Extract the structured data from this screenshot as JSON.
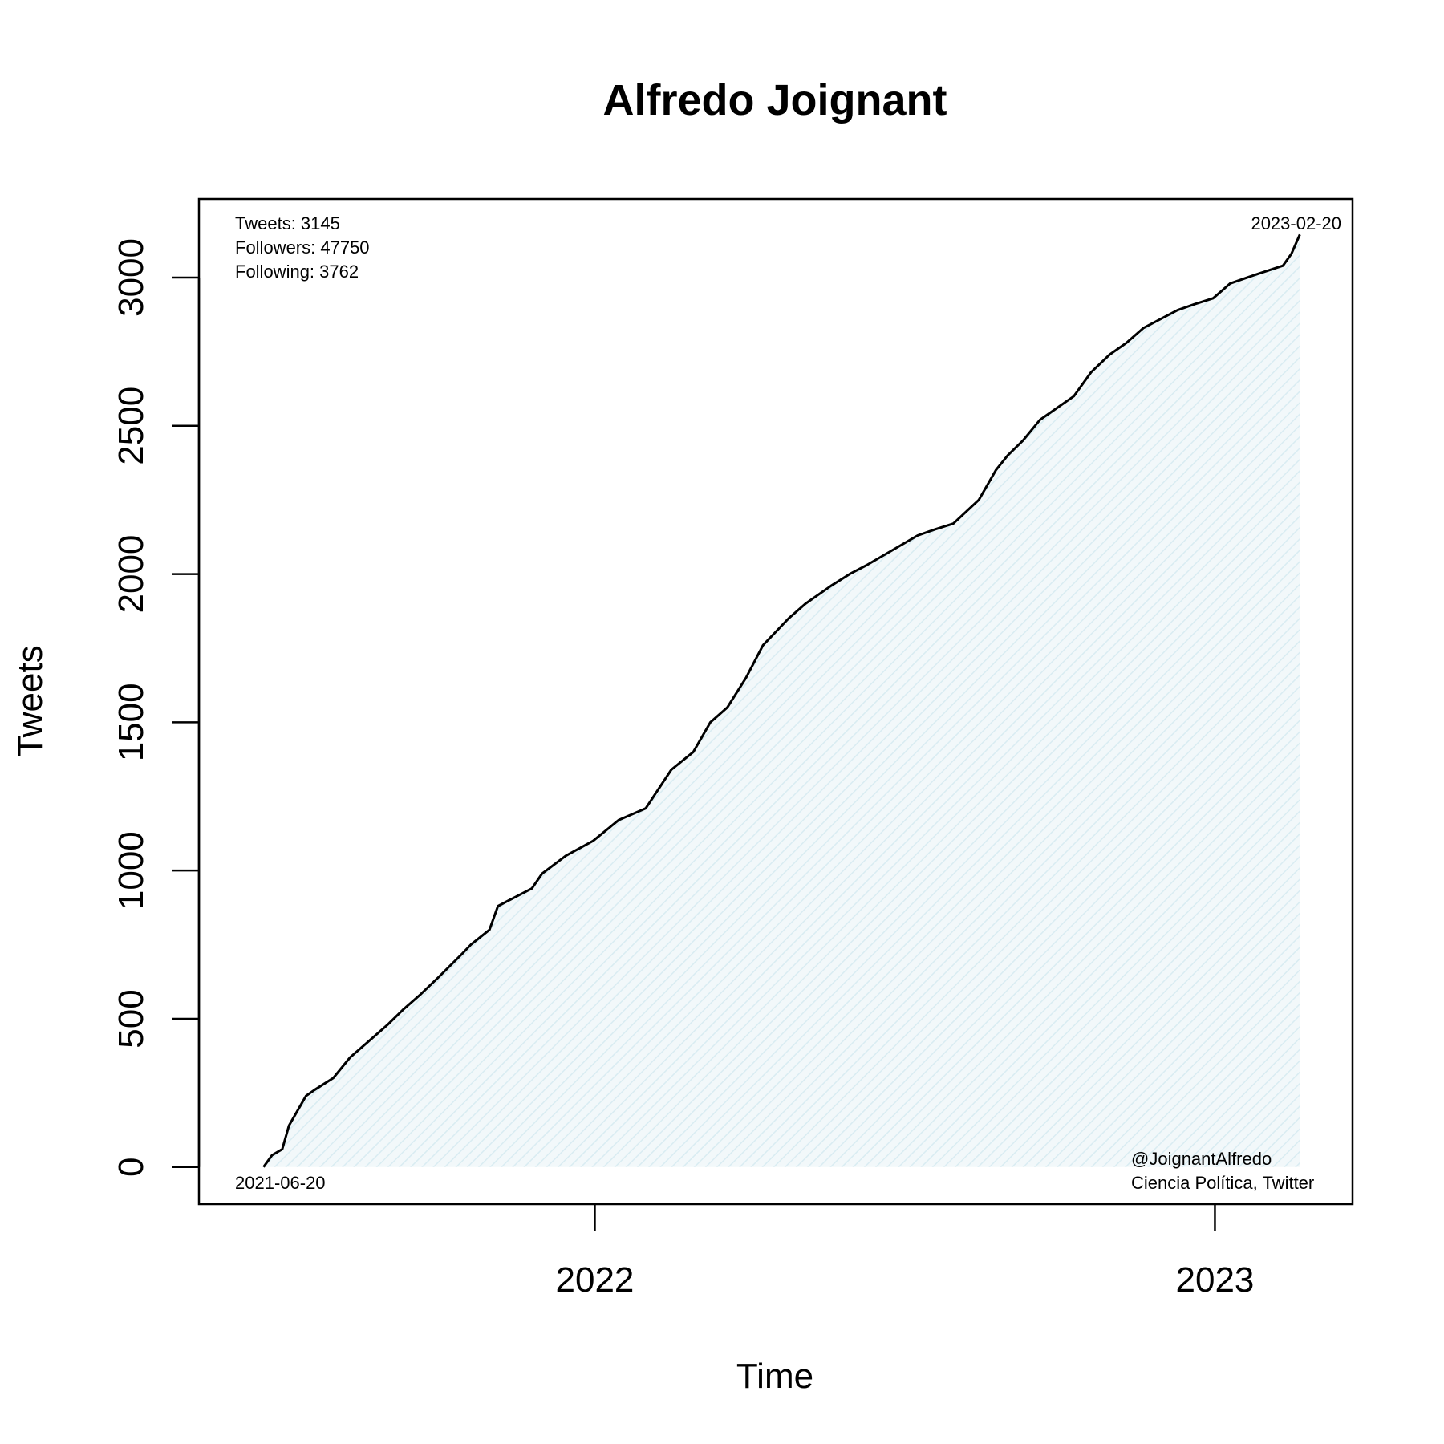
{
  "chart_data": {
    "type": "area",
    "title": "Alfredo Joignant",
    "xlabel": "Time",
    "ylabel": "Tweets",
    "xlim": [
      "2021-05-13",
      "2023-03-23"
    ],
    "ylim": [
      -125,
      3265
    ],
    "x_ticks": [
      {
        "date": "2022-01-01",
        "label": "2022"
      },
      {
        "date": "2023-01-01",
        "label": "2023"
      }
    ],
    "y_ticks": [
      0,
      500,
      1000,
      1500,
      2000,
      2500,
      3000
    ],
    "grid": false,
    "fill_color": "#e6f2f6",
    "line_color": "#000000",
    "series": [
      {
        "x": [
          "2021-06-20",
          "2021-06-25",
          "2021-07-01",
          "2021-07-05",
          "2021-07-10",
          "2021-07-15",
          "2021-07-20",
          "2021-07-31",
          "2021-08-10",
          "2021-08-20",
          "2021-09-01",
          "2021-09-10",
          "2021-09-20",
          "2021-10-01",
          "2021-10-15",
          "2021-10-20",
          "2021-10-31",
          "2021-11-05",
          "2021-11-15",
          "2021-11-25",
          "2021-12-01",
          "2021-12-15",
          "2021-12-31",
          "2022-01-15",
          "2022-01-31",
          "2022-02-15",
          "2022-02-28",
          "2022-03-10",
          "2022-03-20",
          "2022-03-31",
          "2022-04-10",
          "2022-04-25",
          "2022-05-05",
          "2022-05-20",
          "2022-05-31",
          "2022-06-10",
          "2022-06-25",
          "2022-07-10",
          "2022-07-20",
          "2022-07-31",
          "2022-08-15",
          "2022-08-25",
          "2022-09-01",
          "2022-09-10",
          "2022-09-20",
          "2022-09-30",
          "2022-10-10",
          "2022-10-20",
          "2022-10-31",
          "2022-11-10",
          "2022-11-20",
          "2022-11-30",
          "2022-12-10",
          "2022-12-20",
          "2022-12-31",
          "2023-01-10",
          "2023-01-25",
          "2023-02-10",
          "2023-02-15",
          "2023-02-20"
        ],
        "y": [
          0,
          40,
          60,
          140,
          190,
          240,
          260,
          300,
          370,
          420,
          480,
          530,
          580,
          640,
          720,
          750,
          800,
          880,
          910,
          940,
          990,
          1050,
          1100,
          1170,
          1210,
          1340,
          1400,
          1500,
          1550,
          1650,
          1760,
          1850,
          1900,
          1960,
          2000,
          2030,
          2080,
          2130,
          2150,
          2170,
          2250,
          2350,
          2400,
          2450,
          2520,
          2560,
          2600,
          2680,
          2740,
          2780,
          2830,
          2860,
          2890,
          2910,
          2930,
          2980,
          3010,
          3040,
          3080,
          3145
        ]
      }
    ],
    "annotations": {
      "top_left": [
        "Tweets: 3145",
        "Followers: 47750",
        "Following: 3762"
      ],
      "top_right": "2023-02-20",
      "bottom_left": "2021-06-20",
      "bottom_right": [
        "@JoignantAlfredo",
        "Ciencia Política, Twitter"
      ]
    }
  }
}
